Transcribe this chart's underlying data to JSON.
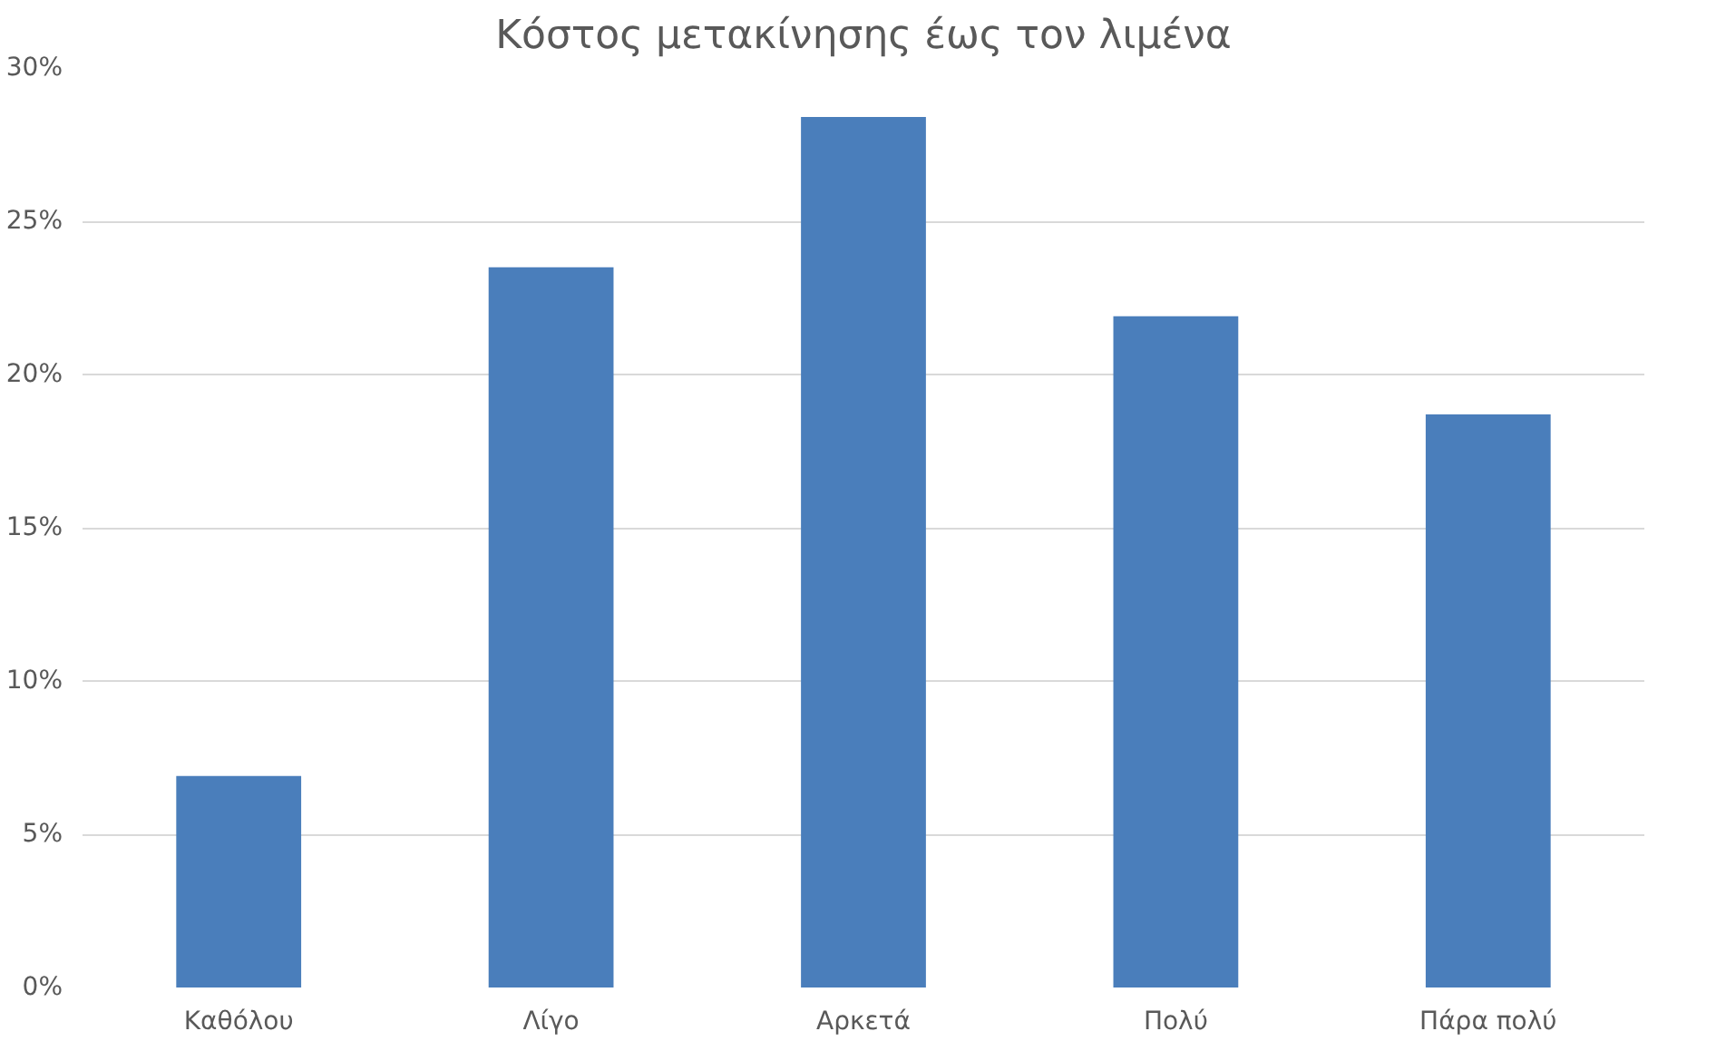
{
  "chart_data": {
    "type": "bar",
    "title": "Κόστος μετακίνησης έως τον λιμένα",
    "categories": [
      "Καθόλου",
      "Λίγο",
      "Αρκετά",
      "Πολύ",
      "Πάρα πολύ"
    ],
    "values": [
      6.9,
      23.5,
      28.4,
      21.9,
      18.7
    ],
    "color": "#4a7ebb",
    "ylim": [
      0,
      30
    ],
    "yticks": [
      {
        "value": 0,
        "label": "0%"
      },
      {
        "value": 5,
        "label": "5%"
      },
      {
        "value": 10,
        "label": "10%"
      },
      {
        "value": 15,
        "label": "15%"
      },
      {
        "value": 20,
        "label": "20%"
      },
      {
        "value": 25,
        "label": "25%"
      },
      {
        "value": 30,
        "label": "30%"
      }
    ],
    "grid": "y"
  }
}
